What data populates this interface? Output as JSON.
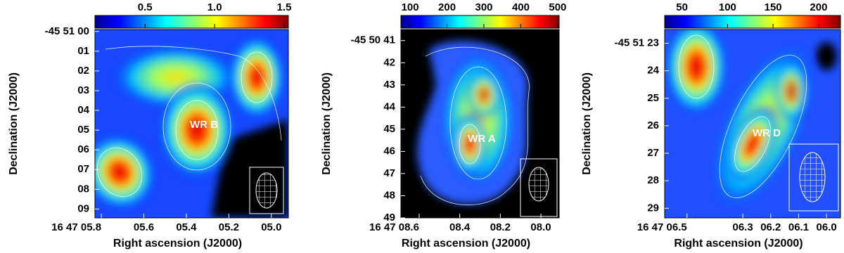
{
  "chart_data": [
    {
      "type": "map",
      "label": "WR B",
      "xlabel": "Right ascension (J2000)",
      "ylabel": "Declination (J2000)",
      "clim": [
        0.14,
        1.53
      ],
      "cticks": [
        0.5,
        {
          "value": 1,
          "label": "1.0"
        },
        1.5
      ],
      "xlim": [
        5.83,
        4.92
      ],
      "xticks": [
        {
          "value": 5.8,
          "label": "16 47 05.8"
        },
        {
          "value": 5.6,
          "label": "05.6"
        },
        {
          "value": 5.4,
          "label": "05.4"
        },
        {
          "value": 5.2,
          "label": "05.2"
        },
        {
          "value": 5.0,
          "label": "05.0"
        }
      ],
      "ylim": [
        -0.1,
        9.45
      ],
      "yticks": [
        {
          "value": 0,
          "label": "-45 51 00"
        },
        {
          "value": 1,
          "label": "01"
        },
        {
          "value": 2,
          "label": "02"
        },
        {
          "value": 3,
          "label": "03"
        },
        {
          "value": 4,
          "label": "04"
        },
        {
          "value": 5,
          "label": "05"
        },
        {
          "value": 6,
          "label": "06"
        },
        {
          "value": 7,
          "label": "07"
        },
        {
          "value": 8,
          "label": "08"
        },
        {
          "value": 9,
          "label": "09"
        }
      ]
    },
    {
      "type": "map",
      "label": "WR A",
      "xlabel": "Right ascension (J2000)",
      "ylabel": "Declination (J2000)",
      "clim": [
        75,
        504
      ],
      "cticks": [
        100,
        200,
        300,
        400,
        500
      ],
      "xlim": [
        8.69,
        7.91
      ],
      "xticks": [
        {
          "value": 8.6,
          "label": "16 47 08.6"
        },
        {
          "value": 8.4,
          "label": "08.4"
        },
        {
          "value": 8.2,
          "label": "08.2"
        },
        {
          "value": 8.0,
          "label": "08.0"
        }
      ],
      "ylim": [
        40.5,
        49
      ],
      "yticks": [
        {
          "value": 41,
          "label": "-45 50 41"
        },
        42,
        43,
        44,
        45,
        46,
        47,
        48,
        49
      ]
    },
    {
      "type": "map",
      "label": "WR D",
      "xlabel": "Right ascension (J2000)",
      "ylabel": "Declination (J2000)",
      "clim": [
        31,
        224
      ],
      "cticks": [
        50,
        100,
        150,
        200
      ],
      "xlim": [
        6.58,
        5.95
      ],
      "xticks": [
        {
          "value": 6.5,
          "label": "16 47 06.5"
        },
        {
          "value": 6.3,
          "label": "06.3"
        },
        {
          "value": 6.2,
          "label": "06.2"
        },
        {
          "value": 6.1,
          "label": "06.1"
        },
        {
          "value": 6.0,
          "label": "06.0"
        }
      ],
      "ylim": [
        22.5,
        29.35
      ],
      "yticks": [
        {
          "value": 23,
          "label": "-45 51 23"
        },
        24,
        25,
        26,
        27,
        28,
        29
      ]
    }
  ]
}
